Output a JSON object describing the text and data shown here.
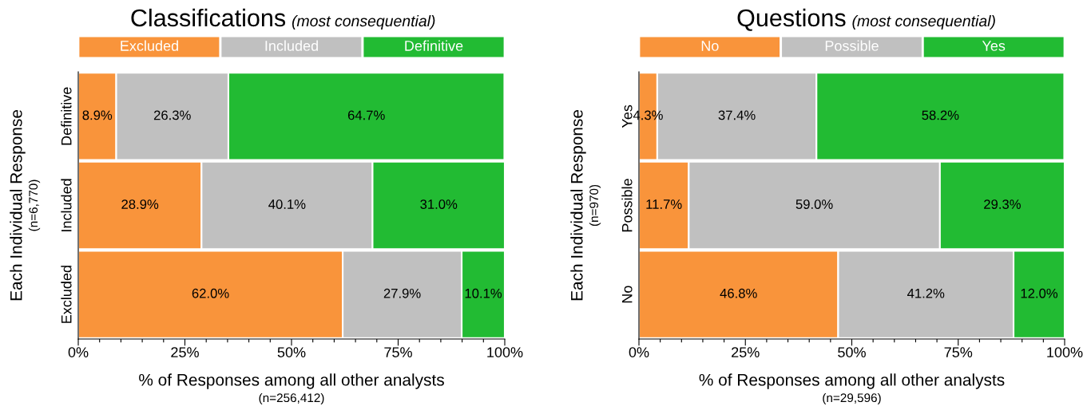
{
  "chart_data": [
    {
      "type": "bar",
      "orientation": "horizontal",
      "stacked": true,
      "title": "Classifications",
      "subtitle": "(most consequential)",
      "xlabel": "% of Responses among all other analysts",
      "ylabel": "Each Individual Response",
      "annotations": [
        "(n=6,770)",
        "(n=256,412)"
      ],
      "categories": [
        "Definitive",
        "Included",
        "Excluded"
      ],
      "series": [
        {
          "name": "Excluded",
          "color": "#f9943b",
          "values": [
            8.9,
            28.9,
            62.0
          ],
          "value_labels": [
            "8.9%",
            "28.9%",
            "62.0%"
          ]
        },
        {
          "name": "Included",
          "color": "#c0c0c0",
          "values": [
            26.3,
            40.1,
            27.9
          ],
          "value_labels": [
            "26.3%",
            "40.1%",
            "27.9%"
          ]
        },
        {
          "name": "Definitive",
          "color": "#22bb33",
          "values": [
            64.7,
            31.0,
            10.1
          ],
          "value_labels": [
            "64.7%",
            "31.0%",
            "10.1%"
          ]
        }
      ],
      "xlim": [
        0,
        100
      ],
      "xticks": [
        {
          "value": 0,
          "label": "0%"
        },
        {
          "value": 5,
          "label": null
        },
        {
          "value": 10,
          "label": null
        },
        {
          "value": 15,
          "label": null
        },
        {
          "value": 20,
          "label": null
        },
        {
          "value": 25,
          "label": "25%"
        },
        {
          "value": 30,
          "label": null
        },
        {
          "value": 35,
          "label": null
        },
        {
          "value": 40,
          "label": null
        },
        {
          "value": 45,
          "label": null
        },
        {
          "value": 50,
          "label": "50%"
        },
        {
          "value": 55,
          "label": null
        },
        {
          "value": 60,
          "label": null
        },
        {
          "value": 65,
          "label": null
        },
        {
          "value": 70,
          "label": null
        },
        {
          "value": 75,
          "label": "75%"
        },
        {
          "value": 80,
          "label": null
        },
        {
          "value": 85,
          "label": null
        },
        {
          "value": 90,
          "label": null
        },
        {
          "value": 95,
          "label": null
        },
        {
          "value": 100,
          "label": "100%"
        }
      ],
      "legend": "top",
      "grid": false
    },
    {
      "type": "bar",
      "orientation": "horizontal",
      "stacked": true,
      "title": "Questions",
      "subtitle": "(most consequential)",
      "xlabel": "% of Responses among all other analysts",
      "ylabel": "Each Individual Response",
      "annotations": [
        "(n=970)",
        "(n=29,596)"
      ],
      "categories": [
        "Yes",
        "Possible",
        "No"
      ],
      "series": [
        {
          "name": "No",
          "color": "#f9943b",
          "values": [
            4.3,
            11.7,
            46.8
          ],
          "value_labels": [
            "4.3%",
            "11.7%",
            "46.8%"
          ]
        },
        {
          "name": "Possible",
          "color": "#c0c0c0",
          "values": [
            37.4,
            59.0,
            41.2
          ],
          "value_labels": [
            "37.4%",
            "59.0%",
            "41.2%"
          ]
        },
        {
          "name": "Yes",
          "color": "#22bb33",
          "values": [
            58.2,
            29.3,
            12.0
          ],
          "value_labels": [
            "58.2%",
            "29.3%",
            "12.0%"
          ]
        }
      ],
      "xlim": [
        0,
        100
      ],
      "xticks": [
        {
          "value": 0,
          "label": "0%"
        },
        {
          "value": 5,
          "label": null
        },
        {
          "value": 10,
          "label": null
        },
        {
          "value": 15,
          "label": null
        },
        {
          "value": 20,
          "label": null
        },
        {
          "value": 25,
          "label": "25%"
        },
        {
          "value": 30,
          "label": null
        },
        {
          "value": 35,
          "label": null
        },
        {
          "value": 40,
          "label": null
        },
        {
          "value": 45,
          "label": null
        },
        {
          "value": 50,
          "label": "50%"
        },
        {
          "value": 55,
          "label": null
        },
        {
          "value": 60,
          "label": null
        },
        {
          "value": 65,
          "label": null
        },
        {
          "value": 70,
          "label": null
        },
        {
          "value": 75,
          "label": "75%"
        },
        {
          "value": 80,
          "label": null
        },
        {
          "value": 85,
          "label": null
        },
        {
          "value": 90,
          "label": null
        },
        {
          "value": 95,
          "label": null
        },
        {
          "value": 100,
          "label": "100%"
        }
      ],
      "legend": "top",
      "grid": false
    }
  ]
}
